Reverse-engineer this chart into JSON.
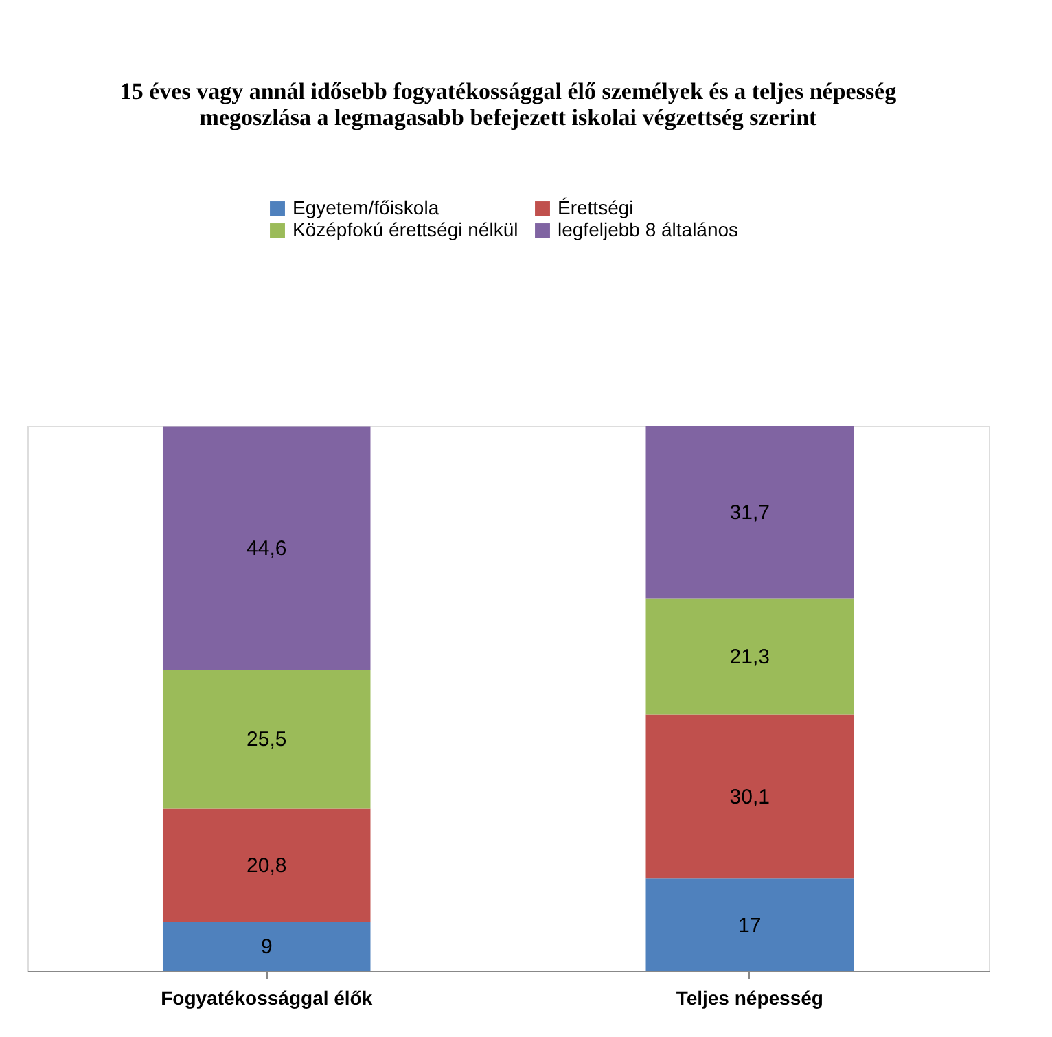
{
  "chart_data": {
    "type": "bar",
    "stacked": true,
    "tick_labels": "x",
    "grid": false,
    "legend": "top",
    "title": "15 éves vagy annál idősebb fogyatékossággal élő személyek és a teljes népesség\nmegoszlása a legmagasabb befejezett iskolai végzettség szerint",
    "categories": [
      "Fogyatékossággal élők",
      "Teljes népesség"
    ],
    "series": [
      {
        "name": "Egyetem/főiskola",
        "color": "#4f81bd",
        "values": [
          9,
          17
        ],
        "value_labels": [
          "9",
          "17"
        ]
      },
      {
        "name": "Érettségi",
        "color": "#c0504d",
        "values": [
          20.8,
          30.1
        ],
        "value_labels": [
          "20,8",
          "30,1"
        ]
      },
      {
        "name": "Középfokú érettségi nélkül",
        "color": "#9bbb59",
        "values": [
          25.5,
          21.3
        ],
        "value_labels": [
          "25,5",
          "21,3"
        ]
      },
      {
        "name": "legfeljebb 8 általános",
        "color": "#8064a2",
        "values": [
          44.6,
          31.7
        ],
        "value_labels": [
          "44,6",
          "31,7"
        ]
      }
    ]
  }
}
